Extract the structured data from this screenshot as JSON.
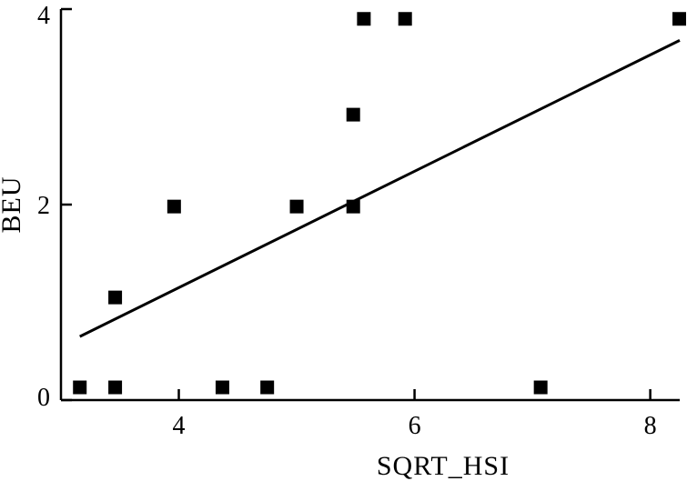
{
  "chart_data": {
    "type": "scatter",
    "title": "",
    "xlabel": "SQRT_HSI",
    "ylabel": "BEU",
    "xlim": [
      3.0,
      8.25
    ],
    "ylim": [
      0,
      4
    ],
    "x_ticks": [
      {
        "value": 4,
        "label": "4"
      },
      {
        "value": 6,
        "label": "6"
      },
      {
        "value": 8,
        "label": "8"
      }
    ],
    "y_ticks": [
      {
        "value": 0,
        "label": "0"
      },
      {
        "value": 2,
        "label": "2"
      },
      {
        "value": 4,
        "label": "4"
      }
    ],
    "grid": false,
    "legend": "none",
    "series": [
      {
        "points": [
          {
            "x": 3.16,
            "y": 0.13
          },
          {
            "x": 3.46,
            "y": 0.13
          },
          {
            "x": 3.46,
            "y": 1.05
          },
          {
            "x": 3.96,
            "y": 1.98
          },
          {
            "x": 4.37,
            "y": 0.13
          },
          {
            "x": 4.75,
            "y": 0.13
          },
          {
            "x": 5.0,
            "y": 1.98
          },
          {
            "x": 5.48,
            "y": 1.98
          },
          {
            "x": 5.48,
            "y": 2.92
          },
          {
            "x": 5.57,
            "y": 3.9
          },
          {
            "x": 5.92,
            "y": 3.9
          },
          {
            "x": 7.07,
            "y": 0.13
          },
          {
            "x": 8.25,
            "y": 3.9
          }
        ]
      }
    ],
    "fit_line": {
      "x1": 3.16,
      "y1": 0.65,
      "x2": 8.25,
      "y2": 3.68
    },
    "colors": {
      "marker": "#000000",
      "line": "#000000",
      "axis": "#000000"
    }
  }
}
